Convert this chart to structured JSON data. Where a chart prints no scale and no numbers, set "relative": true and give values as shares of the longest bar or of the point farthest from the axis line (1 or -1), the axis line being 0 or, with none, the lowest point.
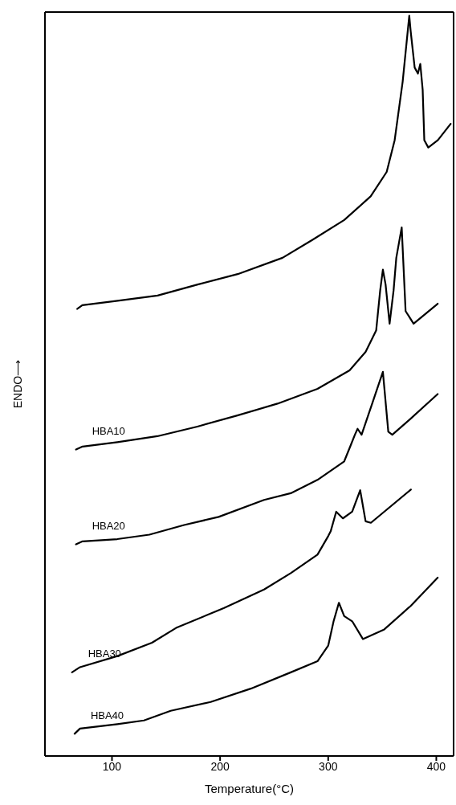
{
  "chart_data": {
    "type": "line",
    "xlabel": "Temperature(°C)",
    "ylabel": "ENDO⟶",
    "relative": true,
    "xlim": [
      38,
      416
    ],
    "xticks": [
      100,
      200,
      300,
      400
    ],
    "marker": "none",
    "line_style": "solid",
    "series": [
      {
        "color": "#000000",
        "x": [
          67.9,
          72.6,
          105.2,
          142.2,
          179.3,
          216.3,
          257.8,
          285.2,
          314.8,
          339.3,
          354.1,
          361.5,
          368.9,
          375,
          376.3,
          380,
          383,
          385.2,
          387.4,
          388.9,
          392.6,
          401.5,
          413.3
        ],
        "values": [
          0.604,
          0.609,
          0.615,
          0.622,
          0.637,
          0.651,
          0.673,
          0.697,
          0.724,
          0.756,
          0.789,
          0.832,
          0.911,
          1.0,
          0.979,
          0.93,
          0.922,
          0.935,
          0.9,
          0.832,
          0.822,
          0.832,
          0.854
        ]
      },
      {
        "name": "HBA10",
        "color": "#000000",
        "x": [
          66.7,
          72.8,
          105,
          142,
          179,
          216,
          253.1,
          290.1,
          319.8,
          334.6,
          344.4,
          348.1,
          350.6,
          353.1,
          356.8,
          360.5,
          363,
          368,
          371.6,
          379,
          401.3
        ],
        "values": [
          0.414,
          0.418,
          0.424,
          0.432,
          0.445,
          0.46,
          0.476,
          0.496,
          0.521,
          0.546,
          0.575,
          0.629,
          0.657,
          0.637,
          0.584,
          0.629,
          0.673,
          0.714,
          0.601,
          0.584,
          0.611
        ]
      },
      {
        "name": "HBA20",
        "color": "#000000",
        "x": [
          66.7,
          72.8,
          105,
          134.6,
          166.7,
          198.7,
          240.7,
          265.4,
          290.1,
          314.8,
          320.9,
          324.7,
          327.2,
          330.9,
          339.5,
          350.6,
          355.6,
          359.3,
          376.5,
          401.3
        ],
        "values": [
          0.286,
          0.29,
          0.293,
          0.299,
          0.312,
          0.323,
          0.346,
          0.355,
          0.373,
          0.398,
          0.42,
          0.434,
          0.442,
          0.434,
          0.471,
          0.519,
          0.438,
          0.434,
          0.456,
          0.489
        ]
      },
      {
        "name": "HBA30",
        "color": "#000000",
        "x": [
          63,
          70.4,
          105,
          137,
          159.3,
          203.7,
          240.7,
          265.4,
          290.1,
          300,
          302.4,
          307.4,
          313.6,
          322.2,
          329.6,
          334.6,
          339.5,
          376.5
        ],
        "values": [
          0.113,
          0.12,
          0.135,
          0.153,
          0.173,
          0.2,
          0.225,
          0.247,
          0.272,
          0.297,
          0.304,
          0.33,
          0.321,
          0.33,
          0.359,
          0.317,
          0.315,
          0.36
        ]
      },
      {
        "name": "HBA40",
        "color": "#000000",
        "x": [
          65.4,
          70.4,
          105,
          129.6,
          154.3,
          191.3,
          228.4,
          265.4,
          290.1,
          300,
          305,
          309.9,
          314.8,
          322.2,
          332.1,
          351.9,
          376.5,
          401.3
        ],
        "values": [
          0.03,
          0.037,
          0.043,
          0.048,
          0.061,
          0.073,
          0.091,
          0.113,
          0.128,
          0.149,
          0.182,
          0.207,
          0.189,
          0.182,
          0.158,
          0.171,
          0.203,
          0.241
        ]
      }
    ]
  }
}
